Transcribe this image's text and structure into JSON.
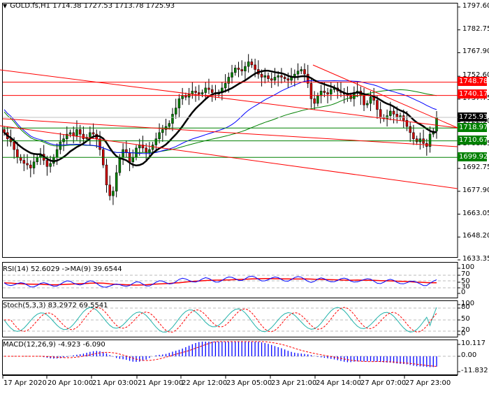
{
  "chart_data": {
    "type": "candlestick",
    "symbol": "GOLD.fs",
    "timeframe": "H1",
    "ohlc_header": {
      "open": "1714.38",
      "high": "1727.53",
      "low": "1713.78",
      "close": "1725.93"
    },
    "title": "GOLD.fs,H1  1714.38 1727.53 1713.78 1725.93",
    "price_axis_ticks": [
      "1797.60",
      "1782.75",
      "1767.90",
      "1752.60",
      "1737.75",
      "1722.90",
      "1708.05",
      "1692.75",
      "1677.90",
      "1663.05",
      "1648.20",
      "1633.35"
    ],
    "price_range": [
      1633.35,
      1797.6
    ],
    "time_axis_ticks": [
      "17 Apr 2020",
      "20 Apr 10:00",
      "21 Apr 03:00",
      "21 Apr 19:00",
      "22 Apr 12:00",
      "23 Apr 05:00",
      "23 Apr 21:00",
      "24 Apr 14:00",
      "27 Apr 07:00",
      "27 Apr 23:00"
    ],
    "horizontal_levels": [
      {
        "price": "1748.78",
        "color": "#ff0000"
      },
      {
        "price": "1740.17",
        "color": "#ff0000"
      },
      {
        "price": "1725.93",
        "color": "#000000",
        "type": "current"
      },
      {
        "price": "1718.97",
        "color": "#008000"
      },
      {
        "price": "1710.67",
        "color": "#008000"
      },
      {
        "price": "1699.92",
        "color": "#008000"
      }
    ],
    "candles_close_approx": [
      1716,
      1712,
      1710,
      1705,
      1700,
      1698,
      1696,
      1695,
      1693,
      1697,
      1700,
      1702,
      1698,
      1694,
      1696,
      1700,
      1705,
      1710,
      1712,
      1715,
      1716,
      1714,
      1718,
      1715,
      1712,
      1713,
      1716,
      1715,
      1712,
      1705,
      1695,
      1682,
      1675,
      1678,
      1690,
      1700,
      1705,
      1703,
      1697,
      1700,
      1706,
      1708,
      1706,
      1703,
      1705,
      1708,
      1712,
      1716,
      1718,
      1720,
      1722,
      1728,
      1732,
      1738,
      1740,
      1739,
      1741,
      1743,
      1742,
      1741,
      1742,
      1745,
      1744,
      1742,
      1741,
      1742,
      1745,
      1748,
      1752,
      1755,
      1758,
      1757,
      1756,
      1759,
      1762,
      1760,
      1757,
      1754,
      1752,
      1753,
      1751,
      1750,
      1752,
      1753,
      1752,
      1751,
      1750,
      1752,
      1754,
      1756,
      1757,
      1754,
      1748,
      1738,
      1735,
      1740,
      1743,
      1742,
      1741,
      1744,
      1745,
      1743,
      1742,
      1741,
      1740,
      1738,
      1742,
      1743,
      1740,
      1734,
      1735,
      1739,
      1737,
      1731,
      1726,
      1725,
      1727,
      1730,
      1728,
      1726,
      1727,
      1724,
      1720,
      1716,
      1712,
      1710,
      1712,
      1709,
      1707,
      1715,
      1717,
      1726
    ],
    "moving_averages": [
      {
        "name": "MA black (thick)",
        "color": "#000000"
      },
      {
        "name": "MA blue",
        "color": "#0000ff"
      },
      {
        "name": "MA green",
        "color": "#008000"
      },
      {
        "name": "MA dark red",
        "color": "#ff0000"
      }
    ],
    "trendlines": [
      {
        "color": "#ff0000",
        "from": [
          0,
          100
        ],
        "to": [
          655,
          183
        ]
      },
      {
        "color": "#ff0000",
        "from": [
          0,
          180
        ],
        "to": [
          655,
          270
        ]
      },
      {
        "color": "#ff0000",
        "from": [
          448,
          93
        ],
        "to": [
          655,
          183
        ]
      }
    ],
    "grid": false,
    "rsi": {
      "label": "RSI(14) 52.6029  ->MA(9) 39.6544",
      "value": 52.6029,
      "ma": 39.6544,
      "levels": [
        "100",
        "70",
        "50",
        "30",
        "0"
      ],
      "colors": {
        "rsi": "#0000ff",
        "ma": "#ff0000"
      }
    },
    "stochastic": {
      "label": "Stoch(5,3,3) 83.2972 69.5541",
      "main": 83.2972,
      "signal": 69.5541,
      "levels": [
        "100",
        "80",
        "50",
        "20",
        "0"
      ],
      "colors": {
        "main": "#20b2aa",
        "signal": "#ff0000"
      }
    },
    "macd": {
      "label": "MACD(12,26,9) -4.923 -6.090",
      "main": -4.923,
      "signal": -6.09,
      "levels": [
        "10.117",
        "0.00",
        "-11.832"
      ],
      "colors": {
        "histogram": "#0000ff",
        "signal": "#ff0000"
      }
    }
  },
  "ui": {
    "title_text": "GOLD.fs,H1  1714.38 1727.53 1713.78 1725.93",
    "tags": {
      "r1": "1748.78",
      "r2": "1740.17",
      "cur": "1725.93",
      "s1": "1718.97",
      "s2": "1710.67",
      "s3": "1699.92"
    },
    "rsi_label": "RSI(14) 52.6029  ->MA(9) 39.6544",
    "stoch_label": "Stoch(5,3,3) 83.2972 69.5541",
    "macd_label": "MACD(12,26,9) -4.923 -6.090",
    "price_ticks": [
      "1797.60",
      "1782.75",
      "1767.90",
      "1752.60",
      "1737.75",
      "1722.90",
      "1708.05",
      "1692.75",
      "1677.90",
      "1663.05",
      "1648.20",
      "1633.35"
    ],
    "rsi_ticks": [
      "100",
      "70",
      "50",
      "30",
      "0"
    ],
    "stoch_ticks": [
      "100",
      "80",
      "50",
      "20",
      "0"
    ],
    "macd_ticks": [
      "10.117",
      "0.00",
      "-11.832"
    ],
    "time_ticks": [
      "17 Apr 2020",
      "20 Apr 10:00",
      "21 Apr 03:00",
      "21 Apr 19:00",
      "22 Apr 12:00",
      "23 Apr 05:00",
      "23 Apr 21:00",
      "24 Apr 14:00",
      "27 Apr 07:00",
      "27 Apr 23:00"
    ]
  }
}
